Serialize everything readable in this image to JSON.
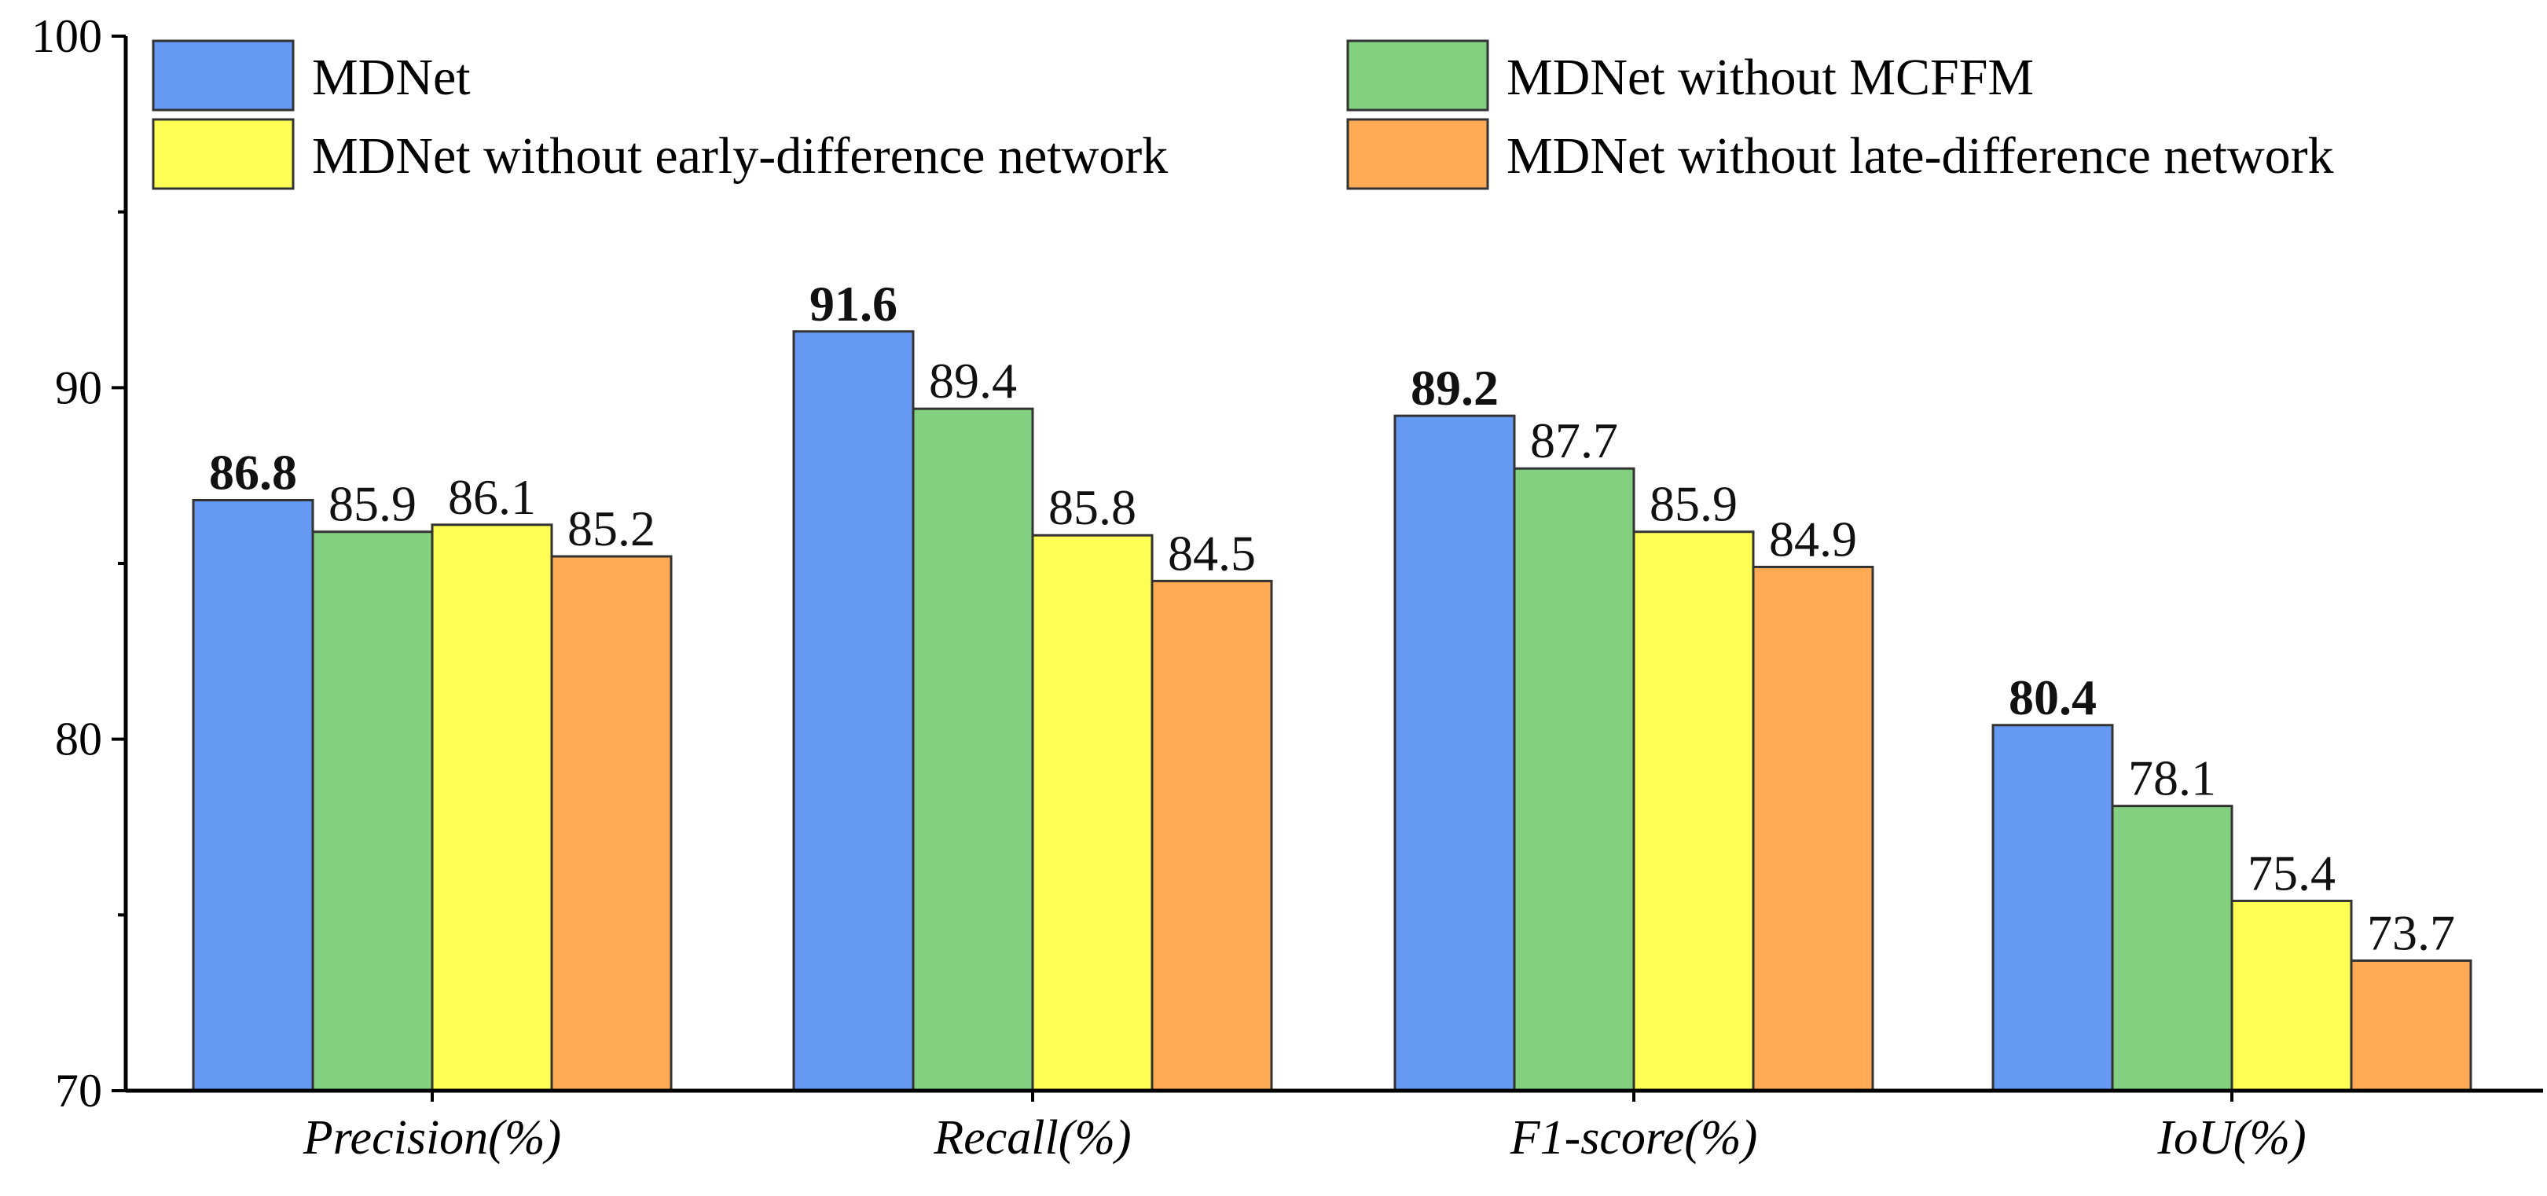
{
  "chart_data": {
    "type": "bar",
    "title": "",
    "xlabel": "",
    "ylabel": "",
    "ylim": [
      70,
      100
    ],
    "yticks": [
      70,
      80,
      90,
      100
    ],
    "categories": [
      "Precision(%)",
      "Recall(%)",
      "F1-score(%)",
      "IoU(%)"
    ],
    "legend_position": "top",
    "series": [
      {
        "name": "MDNet",
        "color": "#6699F4",
        "values": [
          86.8,
          91.6,
          89.2,
          80.4
        ],
        "labels": [
          "86.8",
          "91.6",
          "89.2",
          "80.4"
        ],
        "bold_labels": true
      },
      {
        "name": "MDNet without MCFFM",
        "color": "#82D080",
        "values": [
          85.9,
          89.4,
          87.7,
          78.1
        ],
        "labels": [
          "85.9",
          "89.4",
          "87.7",
          "78.1"
        ],
        "bold_labels": false
      },
      {
        "name": "MDNet without early-difference network",
        "color": "#FFFF55",
        "values": [
          86.1,
          85.8,
          85.9,
          75.4
        ],
        "labels": [
          "86.1",
          "85.8",
          "85.9",
          "75.4"
        ],
        "bold_labels": false
      },
      {
        "name": "MDNet without late-difference network",
        "color": "#FFAA55",
        "values": [
          85.2,
          84.5,
          84.9,
          73.7
        ],
        "labels": [
          "85.2",
          "84.5",
          "84.9",
          "73.7"
        ],
        "bold_labels": false
      }
    ]
  }
}
